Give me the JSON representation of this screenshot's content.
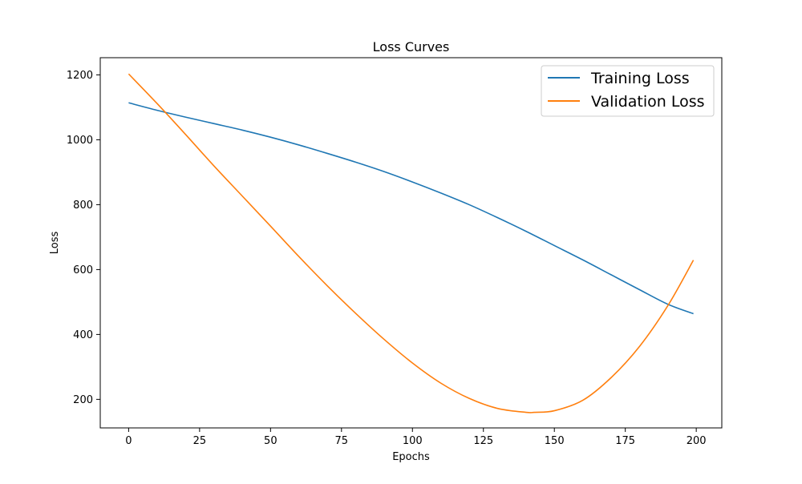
{
  "chart_data": {
    "type": "line",
    "title": "Loss Curves",
    "xlabel": "Epochs",
    "ylabel": "Loss",
    "xlim": [
      -10,
      209
    ],
    "ylim": [
      112,
      1253
    ],
    "xticks": [
      0,
      25,
      50,
      75,
      100,
      125,
      150,
      175,
      200
    ],
    "yticks": [
      200,
      400,
      600,
      800,
      1000,
      1200
    ],
    "grid": false,
    "legend_position": "top-right",
    "series": [
      {
        "name": "Training Loss",
        "color": "#1f77b4",
        "x": [
          0,
          10,
          20,
          30,
          40,
          50,
          60,
          70,
          80,
          90,
          100,
          110,
          120,
          130,
          140,
          150,
          160,
          170,
          180,
          190,
          199
        ],
        "y": [
          1114,
          1091,
          1070,
          1050,
          1030,
          1008,
          984,
          958,
          931,
          902,
          870,
          836,
          800,
          760,
          718,
          674,
          630,
          584,
          538,
          493,
          464
        ]
      },
      {
        "name": "Validation Loss",
        "color": "#ff7f0e",
        "x": [
          0,
          10,
          20,
          30,
          40,
          50,
          60,
          70,
          80,
          90,
          100,
          110,
          120,
          130,
          140,
          143,
          150,
          160,
          170,
          180,
          190,
          199
        ],
        "y": [
          1203,
          1112,
          1017,
          920,
          827,
          734,
          640,
          550,
          465,
          385,
          312,
          250,
          203,
          172,
          160,
          160,
          165,
          197,
          267,
          363,
          489,
          629
        ]
      }
    ]
  }
}
